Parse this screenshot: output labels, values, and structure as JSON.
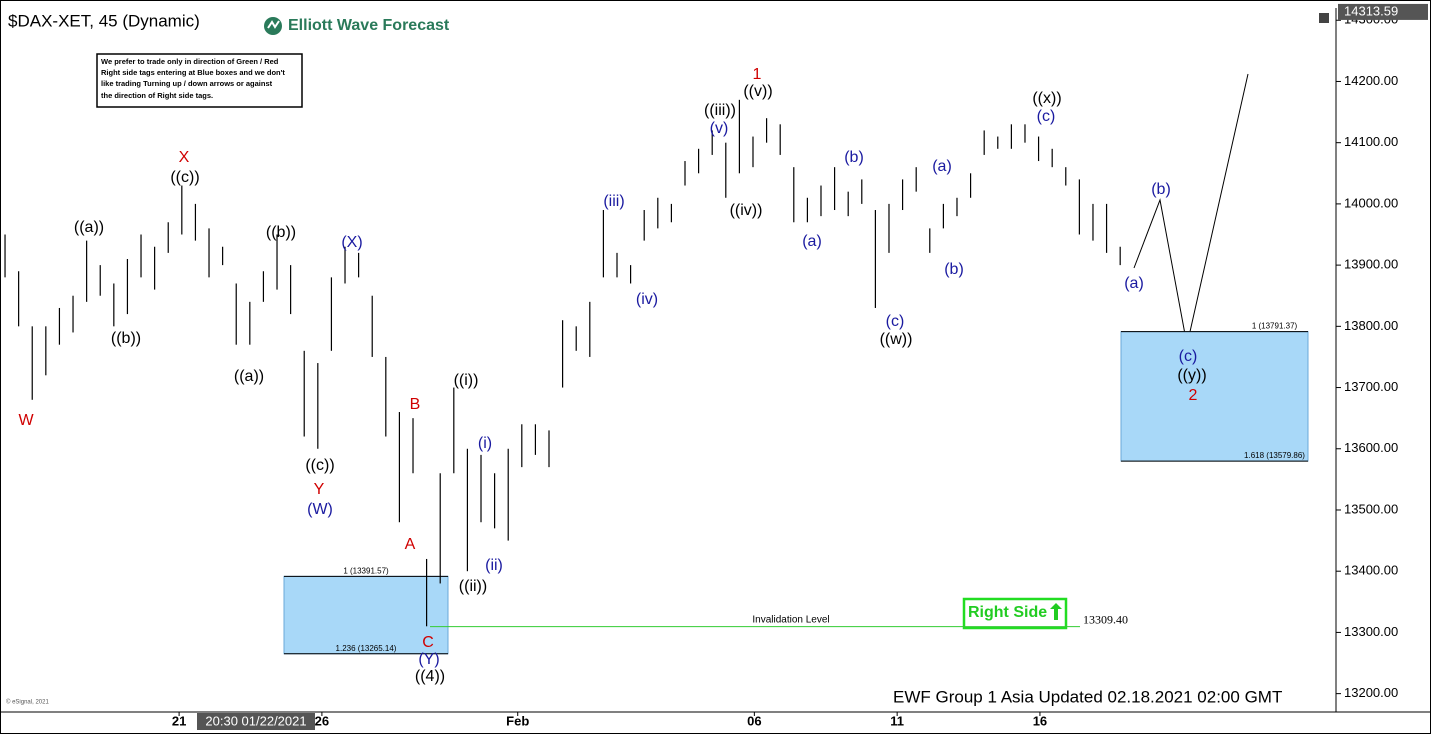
{
  "chart_data": {
    "type": "ohlc",
    "title": "$DAX-XET, 45 (Dynamic)",
    "logo": "Elliott Wave Forecast",
    "note": [
      "We prefer to trade only in direction of Green / Red",
      "Right side tags entering at Blue boxes and we don't",
      "like trading Turning up / down arrows or against",
      "the direction of Right side tags."
    ],
    "footer": "EWF Group 1 Asia Updated 02.18.2021 02:00 GMT",
    "copyright": "© eSignal, 2021",
    "crosshair_label": "20:30 01/22/2021",
    "right_side": "Right Side",
    "last_price": 14313.59,
    "invalidation": {
      "label": "Invalidation Level",
      "value": 13309.4,
      "value_label": "13309.40"
    },
    "boxes": [
      {
        "top": 13391.57,
        "top_label": "1 (13391.57)",
        "bottom": 13265.14,
        "bottom_label": "1.236 (13265.14)"
      },
      {
        "top": 13791.37,
        "top_label": "1 (13791.37)",
        "bottom": 13579.86,
        "bottom_label": "1.618 (13579.86)"
      }
    ],
    "color": "#000000",
    "box_color": "#a8d8f8",
    "ylim": [
      13170,
      14320
    ],
    "yticks": [
      {
        "value": 13200,
        "label": "13200.00"
      },
      {
        "value": 13300,
        "label": "13300.00"
      },
      {
        "value": 13400,
        "label": "13400.00"
      },
      {
        "value": 13500,
        "label": "13500.00"
      },
      {
        "value": 13600,
        "label": "13600.00"
      },
      {
        "value": 13700,
        "label": "13700.00"
      },
      {
        "value": 13800,
        "label": "13800.00"
      },
      {
        "value": 13900,
        "label": "13900.00"
      },
      {
        "value": 14000,
        "label": "14000.00"
      },
      {
        "value": 14100,
        "label": "14100.00"
      },
      {
        "value": 14200,
        "label": "14200.00"
      },
      {
        "value": 14300,
        "label": "14300.00"
      }
    ],
    "xlim": [
      -0.37,
      97.87
    ],
    "xticks": [
      {
        "value": 12.8,
        "label": "21"
      },
      {
        "value": 23.3,
        "label": "26"
      },
      {
        "value": 37.7,
        "label": "Feb"
      },
      {
        "value": 55.1,
        "label": "06"
      },
      {
        "value": 65.6,
        "label": "11"
      },
      {
        "value": 76.1,
        "label": "16"
      }
    ],
    "high": [
      13950,
      13890,
      13800,
      13800,
      13830,
      13850,
      13940,
      13900,
      13870,
      13910,
      13950,
      13930,
      13970,
      14030,
      14000,
      13960,
      13930,
      13870,
      13840,
      13890,
      13950,
      13900,
      13760,
      13740,
      13880,
      13930,
      13920,
      13850,
      13750,
      13660,
      13650,
      13420,
      13560,
      13700,
      13600,
      13590,
      13560,
      13600,
      13640,
      13640,
      13630,
      13810,
      13800,
      13840,
      13990,
      13920,
      13900,
      13990,
      14010,
      14000,
      14070,
      14090,
      14120,
      14100,
      14170,
      14110,
      14140,
      14130,
      14060,
      14010,
      14030,
      14060,
      14020,
      14040,
      13990,
      14000,
      14040,
      14060,
      13960,
      14000,
      14010,
      14050,
      14120,
      14110,
      14130,
      14130,
      14110,
      14090,
      14060,
      14040,
      14000,
      14000,
      13930
    ],
    "low": [
      13880,
      13800,
      13680,
      13720,
      13770,
      13790,
      13840,
      13850,
      13800,
      13820,
      13880,
      13860,
      13920,
      13950,
      13940,
      13880,
      13900,
      13770,
      13770,
      13840,
      13860,
      13820,
      13620,
      13600,
      13760,
      13870,
      13880,
      13750,
      13620,
      13480,
      13560,
      13310,
      13380,
      13560,
      13400,
      13480,
      13470,
      13450,
      13570,
      13590,
      13570,
      13700,
      13760,
      13750,
      13880,
      13880,
      13870,
      13940,
      13960,
      13970,
      14030,
      14050,
      14080,
      14010,
      14050,
      14060,
      14100,
      14080,
      13970,
      13970,
      13980,
      13990,
      13980,
      14000,
      13830,
      13920,
      13990,
      14020,
      13920,
      13960,
      13980,
      14010,
      14080,
      14090,
      14090,
      14100,
      14070,
      14060,
      14030,
      13950,
      13940,
      13920,
      13900
    ],
    "annotations": [
      {
        "text": "W",
        "color": "#d00000"
      },
      {
        "text": "((a))",
        "color": "#000000"
      },
      {
        "text": "((b))",
        "color": "#000000"
      },
      {
        "text": "X",
        "color": "#d00000"
      },
      {
        "text": "((c))",
        "color": "#000000"
      },
      {
        "text": "((a))",
        "color": "#000000"
      },
      {
        "text": "((b))",
        "color": "#000000"
      },
      {
        "text": "(X)",
        "color": "#1a1aa0"
      },
      {
        "text": "((c))",
        "color": "#000000"
      },
      {
        "text": "Y",
        "color": "#d00000"
      },
      {
        "text": "(W)",
        "color": "#1a1aa0"
      },
      {
        "text": "B",
        "color": "#d00000"
      },
      {
        "text": "A",
        "color": "#d00000"
      },
      {
        "text": "C",
        "color": "#d00000"
      },
      {
        "text": "(Y)",
        "color": "#1a1aa0"
      },
      {
        "text": "((4))",
        "color": "#000000"
      },
      {
        "text": "((i))",
        "color": "#000000"
      },
      {
        "text": "(i)",
        "color": "#1a1aa0"
      },
      {
        "text": "((ii))",
        "color": "#000000"
      },
      {
        "text": "(ii)",
        "color": "#1a1aa0"
      },
      {
        "text": "(iii)",
        "color": "#1a1aa0"
      },
      {
        "text": "(iv)",
        "color": "#1a1aa0"
      },
      {
        "text": "(v)",
        "color": "#1a1aa0"
      },
      {
        "text": "((iii))",
        "color": "#000000"
      },
      {
        "text": "1",
        "color": "#d00000"
      },
      {
        "text": "((v))",
        "color": "#000000"
      },
      {
        "text": "((iv))",
        "color": "#000000"
      },
      {
        "text": "(a)",
        "color": "#1a1aa0"
      },
      {
        "text": "(b)",
        "color": "#1a1aa0"
      },
      {
        "text": "(c)",
        "color": "#1a1aa0"
      },
      {
        "text": "((w))",
        "color": "#000000"
      },
      {
        "text": "(a)",
        "color": "#1a1aa0"
      },
      {
        "text": "(b)",
        "color": "#1a1aa0"
      },
      {
        "text": "((x))",
        "color": "#000000"
      },
      {
        "text": "(c)",
        "color": "#1a1aa0"
      },
      {
        "text": "(b)",
        "color": "#1a1aa0"
      },
      {
        "text": "(a)",
        "color": "#1a1aa0"
      },
      {
        "text": "(c)",
        "color": "#1a1aa0"
      },
      {
        "text": "((y))",
        "color": "#000000"
      },
      {
        "text": "2",
        "color": "#d00000"
      }
    ]
  }
}
